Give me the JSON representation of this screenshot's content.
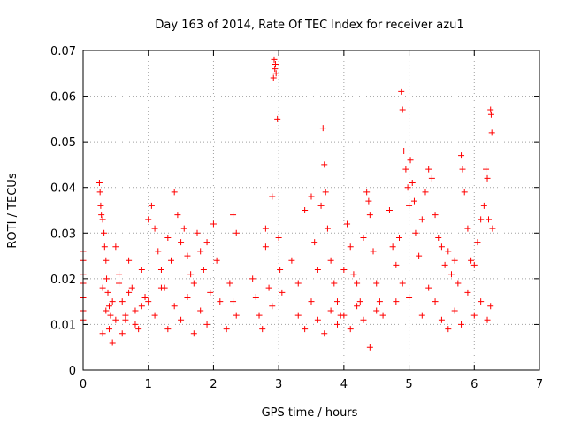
{
  "chart_data": {
    "type": "scatter",
    "title": "Day 163 of 2014, Rate Of TEC Index for receiver azu1",
    "xlabel": "GPS time / hours",
    "ylabel": "ROTI / TECUs",
    "xlim": [
      0,
      7
    ],
    "ylim": [
      0,
      0.07
    ],
    "x_ticks": [
      0,
      1,
      2,
      3,
      4,
      5,
      6,
      7
    ],
    "x_tick_labels": [
      "0",
      "1",
      "2",
      "3",
      "4",
      "5",
      "6",
      "7"
    ],
    "y_ticks": [
      0,
      0.01,
      0.02,
      0.03,
      0.04,
      0.05,
      0.06,
      0.07
    ],
    "y_tick_labels": [
      "0",
      "0.01",
      "0.02",
      "0.03",
      "0.04",
      "0.05",
      "0.06",
      "0.07"
    ],
    "grid": true,
    "marker": "+",
    "color": "#ff0000",
    "series": [
      {
        "name": "ROTI",
        "x": [
          0.0,
          0.0,
          0.0,
          0.0,
          0.0,
          0.0,
          0.0,
          0.25,
          0.26,
          0.27,
          0.28,
          0.3,
          0.32,
          0.33,
          0.35,
          0.36,
          0.38,
          0.4,
          0.42,
          0.3,
          0.45,
          0.5,
          0.55,
          0.6,
          0.65,
          0.7,
          0.75,
          0.8,
          0.85,
          0.9,
          0.95,
          0.3,
          0.35,
          0.4,
          0.45,
          0.5,
          0.55,
          0.6,
          0.65,
          0.7,
          0.8,
          0.9,
          1.0,
          1.05,
          1.1,
          1.15,
          1.2,
          1.25,
          1.3,
          1.35,
          1.4,
          1.45,
          1.5,
          1.55,
          1.6,
          1.65,
          1.7,
          1.75,
          1.8,
          1.85,
          1.9,
          1.95,
          1.0,
          1.1,
          1.2,
          1.3,
          1.4,
          1.5,
          1.6,
          1.7,
          1.8,
          1.9,
          2.0,
          2.05,
          2.1,
          2.3,
          2.35,
          2.25,
          2.3,
          2.35,
          2.2,
          2.6,
          2.65,
          2.7,
          2.75,
          2.8,
          2.85,
          2.9,
          2.92,
          2.93,
          2.94,
          2.95,
          2.96,
          2.98,
          3.0,
          3.02,
          3.05,
          2.9,
          2.8,
          3.2,
          3.3,
          3.4,
          3.5,
          3.55,
          3.6,
          3.65,
          3.68,
          3.7,
          3.72,
          3.75,
          3.8,
          3.85,
          3.9,
          3.95,
          3.3,
          3.4,
          3.5,
          3.6,
          3.7,
          3.8,
          3.9,
          4.0,
          4.05,
          4.1,
          4.15,
          4.2,
          4.25,
          4.3,
          4.35,
          4.38,
          4.4,
          4.45,
          4.5,
          4.55,
          4.6,
          4.0,
          4.1,
          4.2,
          4.3,
          4.4,
          4.5,
          4.7,
          4.75,
          4.8,
          4.85,
          4.88,
          4.9,
          4.92,
          4.95,
          4.98,
          5.0,
          5.02,
          5.05,
          5.08,
          5.1,
          5.15,
          5.2,
          5.25,
          5.3,
          5.35,
          5.4,
          5.45,
          5.5,
          5.55,
          5.6,
          5.65,
          5.7,
          5.75,
          5.8,
          5.82,
          5.85,
          5.9,
          5.95,
          4.8,
          4.9,
          5.0,
          5.2,
          5.3,
          5.4,
          5.5,
          5.6,
          5.7,
          5.8,
          5.9,
          6.0,
          6.05,
          6.1,
          6.15,
          6.18,
          6.2,
          6.22,
          6.25,
          6.26,
          6.27,
          6.28,
          6.0,
          6.1,
          6.2,
          6.25
        ],
        "y": [
          0.026,
          0.024,
          0.021,
          0.019,
          0.016,
          0.013,
          0.011,
          0.041,
          0.039,
          0.036,
          0.034,
          0.033,
          0.03,
          0.027,
          0.024,
          0.02,
          0.017,
          0.014,
          0.012,
          0.008,
          0.006,
          0.027,
          0.021,
          0.015,
          0.011,
          0.024,
          0.018,
          0.013,
          0.009,
          0.022,
          0.016,
          0.018,
          0.013,
          0.009,
          0.015,
          0.011,
          0.019,
          0.008,
          0.012,
          0.017,
          0.01,
          0.014,
          0.033,
          0.036,
          0.031,
          0.026,
          0.022,
          0.018,
          0.029,
          0.024,
          0.039,
          0.034,
          0.028,
          0.031,
          0.025,
          0.021,
          0.019,
          0.03,
          0.026,
          0.022,
          0.028,
          0.017,
          0.015,
          0.012,
          0.018,
          0.009,
          0.014,
          0.011,
          0.016,
          0.008,
          0.013,
          0.01,
          0.032,
          0.024,
          0.015,
          0.034,
          0.03,
          0.019,
          0.015,
          0.012,
          0.009,
          0.02,
          0.016,
          0.012,
          0.009,
          0.027,
          0.018,
          0.014,
          0.064,
          0.068,
          0.066,
          0.067,
          0.065,
          0.055,
          0.029,
          0.022,
          0.017,
          0.038,
          0.031,
          0.024,
          0.019,
          0.035,
          0.038,
          0.028,
          0.022,
          0.036,
          0.053,
          0.045,
          0.039,
          0.031,
          0.024,
          0.019,
          0.015,
          0.012,
          0.012,
          0.009,
          0.015,
          0.011,
          0.008,
          0.013,
          0.01,
          0.022,
          0.032,
          0.027,
          0.021,
          0.019,
          0.015,
          0.029,
          0.039,
          0.037,
          0.034,
          0.026,
          0.019,
          0.015,
          0.012,
          0.012,
          0.009,
          0.014,
          0.011,
          0.005,
          0.013,
          0.035,
          0.027,
          0.023,
          0.029,
          0.061,
          0.057,
          0.048,
          0.044,
          0.04,
          0.036,
          0.046,
          0.041,
          0.037,
          0.03,
          0.025,
          0.033,
          0.039,
          0.044,
          0.042,
          0.034,
          0.029,
          0.027,
          0.023,
          0.026,
          0.021,
          0.024,
          0.019,
          0.047,
          0.044,
          0.039,
          0.031,
          0.024,
          0.015,
          0.019,
          0.016,
          0.012,
          0.018,
          0.015,
          0.011,
          0.009,
          0.013,
          0.01,
          0.017,
          0.023,
          0.028,
          0.033,
          0.036,
          0.044,
          0.042,
          0.033,
          0.057,
          0.056,
          0.052,
          0.031,
          0.012,
          0.015,
          0.011,
          0.014
        ]
      }
    ]
  }
}
